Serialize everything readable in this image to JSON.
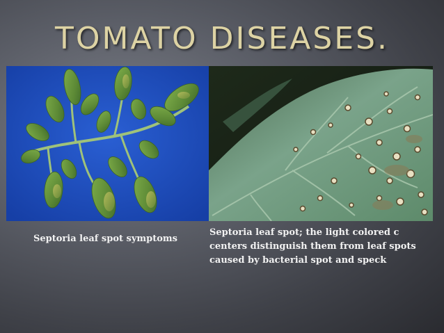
{
  "slide": {
    "title": "TOMATO DISEASES.",
    "left_image": {
      "subject": "tomato-leaf-on-blue-background",
      "caption": "Septoria leaf spot symptoms"
    },
    "right_image": {
      "subject": "tomato-leaf-closeup-with-spots",
      "caption_lines": [
        "Septoria leaf spot; the light colored c",
        "centers distinguish them from leaf spots",
        "caused by bacterial spot and speck"
      ]
    },
    "colors": {
      "title": "#ddd3a4",
      "caption": "#f2f2f2",
      "left_photo_background": "#1d4fc2",
      "leaf_green": "#6d9a3f",
      "closeup_leaf": "#6f9a84"
    }
  }
}
